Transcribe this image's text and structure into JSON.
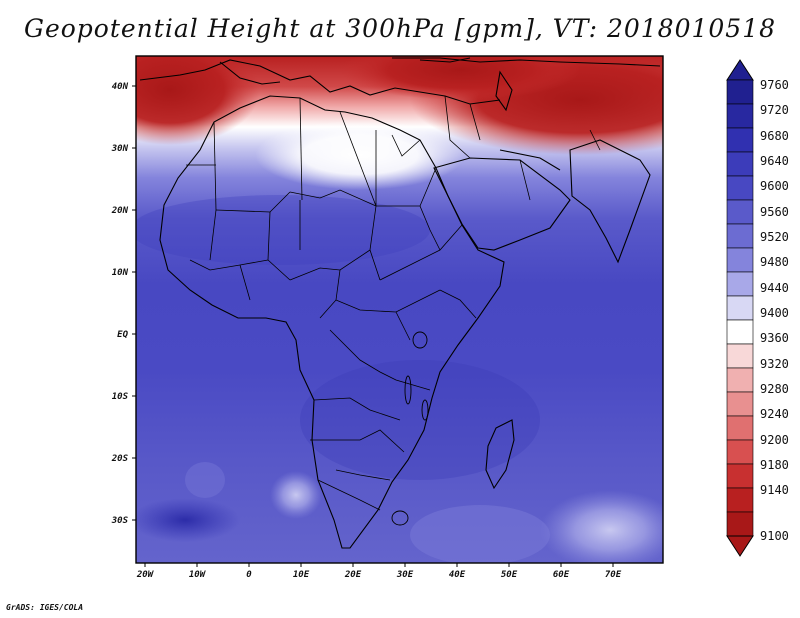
{
  "title": "Geopotential Height at 300hPa [gpm], VT: 2018010518",
  "credit": "GrADS: IGES/COLA",
  "map": {
    "x_ticks": [
      "20W",
      "10W",
      "0",
      "10E",
      "20E",
      "30E",
      "40E",
      "50E",
      "60E",
      "70E"
    ],
    "y_ticks": [
      "40N",
      "30N",
      "20N",
      "10N",
      "EQ",
      "10S",
      "20S",
      "30S"
    ]
  },
  "colorbar": {
    "levels": [
      "9760",
      "9720",
      "9680",
      "9640",
      "9600",
      "9560",
      "9520",
      "9480",
      "9440",
      "9400",
      "9360",
      "9320",
      "9280",
      "9240",
      "9200",
      "9180",
      "9140",
      "9100"
    ],
    "colors": [
      "#202090",
      "#2828a0",
      "#3030b0",
      "#3c3cba",
      "#4848c2",
      "#5a5aca",
      "#6c6cd2",
      "#8484dc",
      "#a8a8e8",
      "#d8d8f4",
      "#ffffff",
      "#f8d8d8",
      "#f0b0b0",
      "#e89090",
      "#e07070",
      "#d85050",
      "#c83030",
      "#b82020",
      "#a81818"
    ]
  }
}
